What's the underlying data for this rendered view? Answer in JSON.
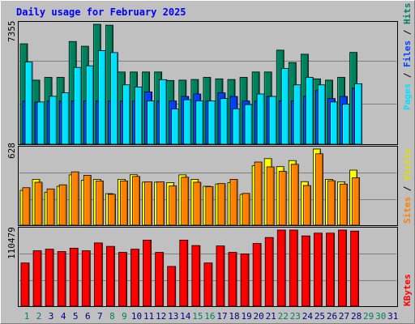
{
  "title": "Daily usage for February 2025",
  "colors": {
    "hits": "#00805c",
    "files": "#0040ff",
    "pages": "#00e0ff",
    "visits": "#ffff00",
    "sites": "#ff8000",
    "kbytes": "#ff0000",
    "weekend_day": "#00805c",
    "weekday": "#000080",
    "title": "#0000ff",
    "background": "#c0c0c0"
  },
  "chart_data": [
    {
      "type": "bar",
      "panel": "hits-files-pages",
      "categories": [
        "1",
        "2",
        "3",
        "4",
        "5",
        "6",
        "7",
        "8",
        "9",
        "10",
        "11",
        "12",
        "13",
        "14",
        "15",
        "16",
        "17",
        "18",
        "19",
        "20",
        "21",
        "22",
        "23",
        "24",
        "25",
        "26",
        "27",
        "28"
      ],
      "y_max_label": "7355",
      "ylim": [
        0,
        7355
      ],
      "series": [
        {
          "name": "Hits",
          "values": [
            6160,
            3930,
            4100,
            4100,
            6300,
            6010,
            7355,
            7300,
            4430,
            4430,
            4430,
            4430,
            3910,
            3930,
            3970,
            4100,
            4010,
            3970,
            4100,
            4430,
            4430,
            5770,
            5010,
            5520,
            4010,
            3930,
            4100,
            5630
          ]
        },
        {
          "name": "Files",
          "values": [
            2650,
            2590,
            2650,
            2650,
            2650,
            2650,
            2650,
            2650,
            2650,
            2650,
            3210,
            2650,
            2650,
            2930,
            3080,
            2650,
            3150,
            2930,
            2650,
            2650,
            2930,
            2650,
            2650,
            2930,
            3290,
            2800,
            2930,
            3430
          ]
        },
        {
          "name": "Pages",
          "values": [
            5040,
            2590,
            2940,
            3150,
            4710,
            4810,
            5740,
            5620,
            3640,
            3510,
            2650,
            3960,
            2160,
            2730,
            2650,
            2650,
            2800,
            2170,
            2430,
            3080,
            2930,
            4650,
            3640,
            4100,
            3640,
            2590,
            2450,
            3710
          ]
        }
      ],
      "legend": [
        "Pages",
        "Files",
        "Hits"
      ]
    },
    {
      "type": "bar",
      "panel": "visits-sites",
      "categories": [
        "1",
        "2",
        "3",
        "4",
        "5",
        "6",
        "7",
        "8",
        "9",
        "10",
        "11",
        "12",
        "13",
        "14",
        "15",
        "16",
        "17",
        "18",
        "19",
        "20",
        "21",
        "22",
        "23",
        "24",
        "25",
        "26",
        "27",
        "28"
      ],
      "y_max_label": "628",
      "ylim": [
        0,
        628
      ],
      "series": [
        {
          "name": "Visits",
          "values": [
            287,
            378,
            272,
            320,
            415,
            370,
            377,
            260,
            378,
            416,
            355,
            355,
            351,
            415,
            377,
            321,
            340,
            351,
            254,
            490,
            549,
            483,
            533,
            359,
            628,
            378,
            358,
            454
          ]
        },
        {
          "name": "Sites",
          "values": [
            309,
            354,
            299,
            333,
            440,
            411,
            365,
            255,
            365,
            402,
            357,
            357,
            324,
            395,
            354,
            318,
            343,
            378,
            262,
            521,
            481,
            444,
            502,
            327,
            589,
            367,
            339,
            391
          ]
        }
      ],
      "legend": [
        "Sites",
        "Visits"
      ]
    },
    {
      "type": "bar",
      "panel": "kbytes",
      "categories": [
        "1",
        "2",
        "3",
        "4",
        "5",
        "6",
        "7",
        "8",
        "9",
        "10",
        "11",
        "12",
        "13",
        "14",
        "15",
        "16",
        "17",
        "18",
        "19",
        "20",
        "21",
        "22",
        "23",
        "24",
        "25",
        "26",
        "27",
        "28"
      ],
      "y_max_label": "110479",
      "ylim": [
        0,
        110479
      ],
      "series": [
        {
          "name": "KBytes",
          "values": [
            62700,
            80400,
            82700,
            79200,
            84200,
            80400,
            91800,
            86800,
            78100,
            82700,
            95900,
            78100,
            57700,
            95900,
            88000,
            62700,
            87400,
            78100,
            75800,
            91000,
            99700,
            110479,
            110479,
            102000,
            106000,
            106000,
            110479,
            109000
          ]
        }
      ],
      "legend": [
        "KBytes"
      ]
    }
  ],
  "x_axis": {
    "days": [
      "1",
      "2",
      "3",
      "4",
      "5",
      "6",
      "7",
      "8",
      "9",
      "10",
      "11",
      "12",
      "13",
      "14",
      "15",
      "16",
      "17",
      "18",
      "19",
      "20",
      "21",
      "22",
      "23",
      "24",
      "25",
      "26",
      "27",
      "28",
      "29",
      "30",
      "31"
    ],
    "weekend_days": [
      "1",
      "2",
      "8",
      "9",
      "15",
      "16",
      "22",
      "23",
      "29",
      "30"
    ]
  },
  "legend_labels": {
    "pages": "Pages",
    "files": "Files",
    "hits": "Hits",
    "sites": "Sites",
    "visits": "Visits",
    "kbytes": "KBytes"
  }
}
